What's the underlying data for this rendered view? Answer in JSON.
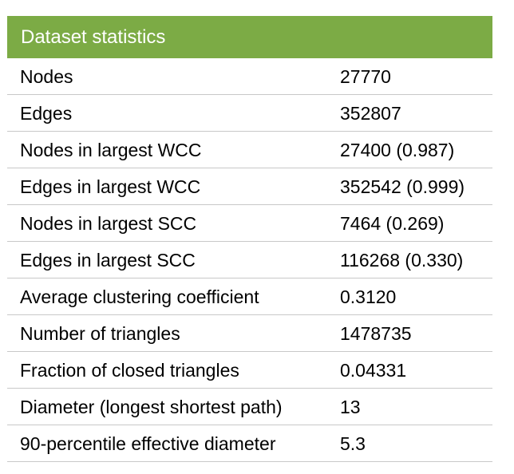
{
  "table": {
    "title": "Dataset statistics",
    "header_color": "#7cab45",
    "rows": [
      {
        "key": "Nodes",
        "value": "27770"
      },
      {
        "key": "Edges",
        "value": "352807"
      },
      {
        "key": "Nodes in largest WCC",
        "value": "27400 (0.987)"
      },
      {
        "key": "Edges in largest WCC",
        "value": "352542 (0.999)"
      },
      {
        "key": "Nodes in largest SCC",
        "value": "7464 (0.269)"
      },
      {
        "key": "Edges in largest SCC",
        "value": "116268 (0.330)"
      },
      {
        "key": "Average clustering coefficient",
        "value": "0.3120"
      },
      {
        "key": "Number of triangles",
        "value": "1478735"
      },
      {
        "key": "Fraction of closed triangles",
        "value": "0.04331"
      },
      {
        "key": "Diameter (longest shortest path)",
        "value": "13"
      },
      {
        "key": "90-percentile effective diameter",
        "value": "5.3"
      }
    ]
  }
}
